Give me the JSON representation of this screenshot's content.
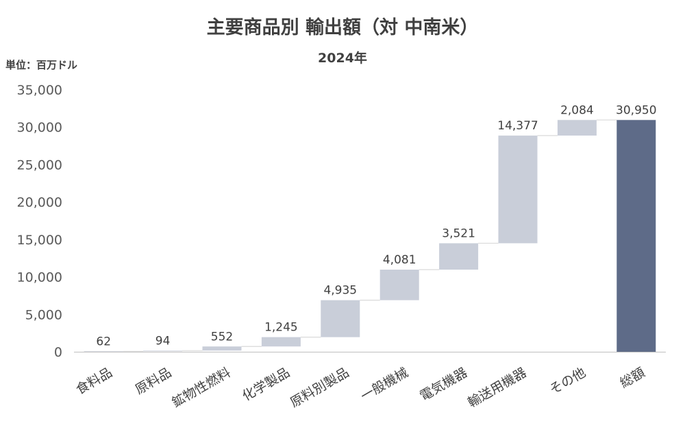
{
  "chart_data": {
    "type": "bar",
    "subtype": "waterfall",
    "title": "主要商品別 輸出額（対 中南米）",
    "subtitle": "2024年",
    "unit_label": "単位：百万ドル",
    "categories": [
      "食料品",
      "原料品",
      "鉱物性燃料",
      "化学製品",
      "原料別製品",
      "一般機械",
      "電気機器",
      "輸送用機器",
      "その他",
      "総額"
    ],
    "values": [
      62,
      94,
      552,
      1245,
      4935,
      4081,
      3521,
      14377,
      2084,
      30950
    ],
    "data_labels": [
      "62",
      "94",
      "552",
      "1,245",
      "4,935",
      "4,081",
      "3,521",
      "14,377",
      "2,084",
      "30,950"
    ],
    "total_index": 9,
    "ylim": [
      0,
      35000
    ],
    "yticks": [
      0,
      5000,
      10000,
      15000,
      20000,
      25000,
      30000,
      35000
    ],
    "ytick_labels": [
      "0",
      "5,000",
      "10,000",
      "15,000",
      "20,000",
      "25,000",
      "30,000",
      "35,000"
    ],
    "grid": false,
    "colors": {
      "increment": "#c9ced9",
      "total": "#5e6b88",
      "connector": "#d9d9d9",
      "axis": "#bfbfbf"
    }
  }
}
